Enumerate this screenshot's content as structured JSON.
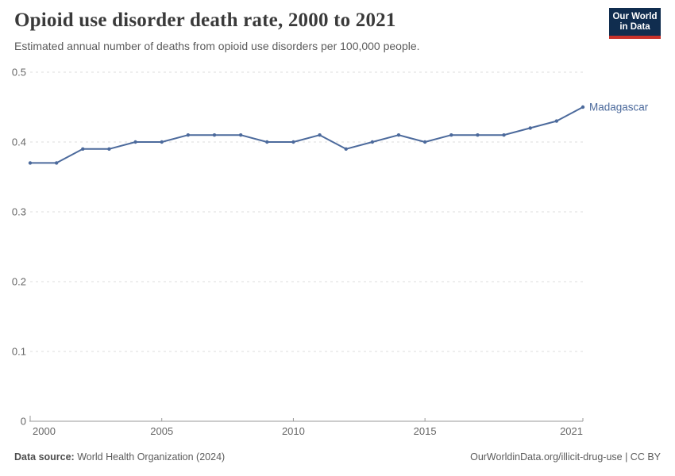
{
  "header": {
    "title": "Opioid use disorder death rate, 2000 to 2021",
    "subtitle": "Estimated annual number of deaths from opioid use disorders per 100,000 people.",
    "logo": {
      "line1": "Our World",
      "line2": "in Data"
    }
  },
  "chart_data": {
    "type": "line",
    "title": "Opioid use disorder death rate, 2000 to 2021",
    "xlabel": "",
    "ylabel": "",
    "xlim": [
      2000,
      2021
    ],
    "ylim": [
      0,
      0.5
    ],
    "grid": "horizontal-dashed",
    "legend_position": "end-of-line-label",
    "x_ticks": [
      2000,
      2005,
      2010,
      2015,
      2021
    ],
    "x_tick_labels": [
      "2000",
      "2005",
      "2010",
      "2015",
      "2021"
    ],
    "y_ticks": [
      0,
      0.1,
      0.2,
      0.3,
      0.4,
      0.5
    ],
    "y_tick_labels": [
      "0",
      "0.1",
      "0.2",
      "0.3",
      "0.4",
      "0.5"
    ],
    "series": [
      {
        "name": "Madagascar",
        "color": "#4C6A9C",
        "x": [
          2000,
          2001,
          2002,
          2003,
          2004,
          2005,
          2006,
          2007,
          2008,
          2009,
          2010,
          2011,
          2012,
          2013,
          2014,
          2015,
          2016,
          2017,
          2018,
          2019,
          2020,
          2021
        ],
        "values": [
          0.37,
          0.37,
          0.39,
          0.39,
          0.4,
          0.4,
          0.41,
          0.41,
          0.41,
          0.4,
          0.4,
          0.41,
          0.39,
          0.4,
          0.41,
          0.4,
          0.41,
          0.41,
          0.41,
          0.42,
          0.43,
          0.45
        ]
      }
    ]
  },
  "footer": {
    "source_label": "Data source:",
    "source_text": " World Health Organization (2024)",
    "credit": "OurWorldinData.org/illicit-drug-use | CC BY"
  },
  "colors": {
    "line_blue": "#4C6A9C",
    "logo_navy": "#102d4f",
    "logo_red": "#c8322b",
    "gridline": "#dcdcdc",
    "axis": "#9a9a9a",
    "tick_text": "#666666"
  }
}
